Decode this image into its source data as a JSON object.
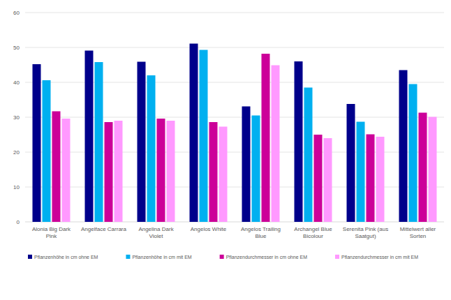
{
  "chart_data": {
    "type": "bar",
    "categories": [
      "Alonia Big Dark Pink",
      "Angelface Carrara",
      "Angelina Dark Violet",
      "Angelos White",
      "Angelos Trailing Blue",
      "Archangel Blue Bicolour",
      "Serenita Pink (aus Saatgut)",
      "Mittelwert aller Sorten"
    ],
    "series": [
      {
        "name": "Pflanzenhöhe in cm ohne EM",
        "color": "#00008b",
        "values": [
          45.2,
          49.1,
          45.9,
          51.1,
          33.1,
          46.0,
          33.8,
          43.5
        ]
      },
      {
        "name": "Pflanzenhöhe in cm mit EM",
        "color": "#00b0f0",
        "values": [
          40.6,
          45.8,
          42.0,
          49.3,
          30.5,
          38.5,
          28.7,
          39.5
        ]
      },
      {
        "name": "Pflanzendurchmesser in cm ohne EM",
        "color": "#cc0099",
        "values": [
          31.7,
          28.6,
          29.6,
          28.6,
          48.2,
          25.0,
          25.1,
          31.3
        ]
      },
      {
        "name": "Pflanzendurchmesser in cm mit EM",
        "color": "#ff99ff",
        "values": [
          29.6,
          29.0,
          29.0,
          27.3,
          44.9,
          24.0,
          24.4,
          30.1
        ]
      }
    ],
    "ylim": [
      0,
      60
    ],
    "yticks": [
      0,
      10,
      20,
      30,
      40,
      50,
      60
    ],
    "grid": true,
    "legend": "bottom"
  }
}
